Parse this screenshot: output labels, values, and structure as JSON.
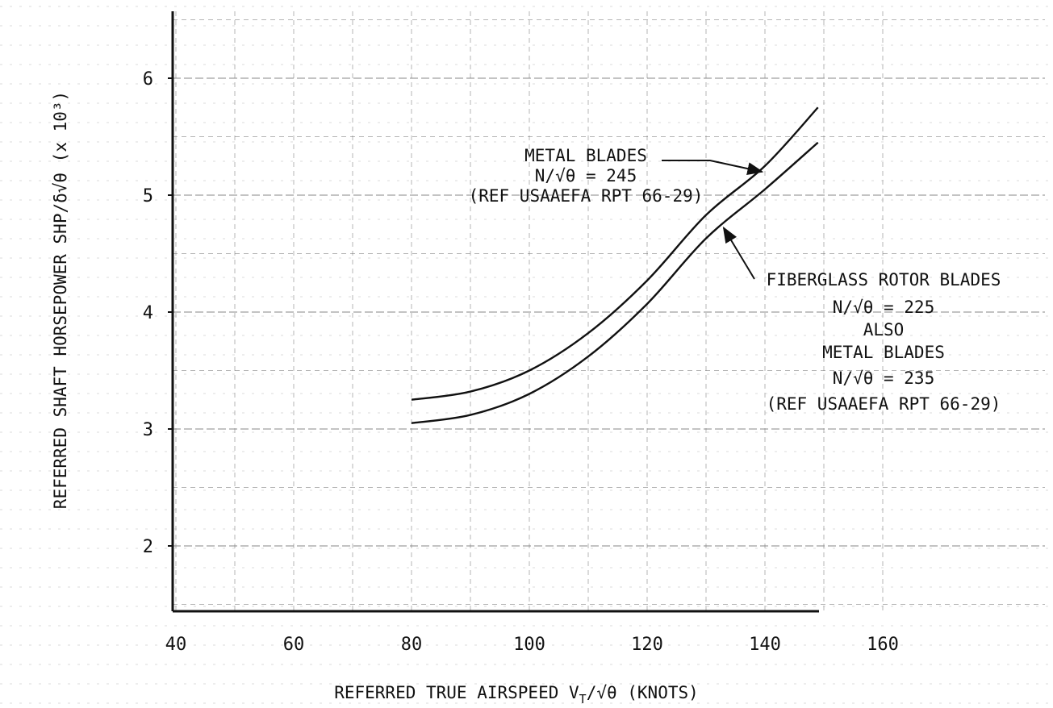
{
  "chart_data": {
    "type": "line",
    "xlabel": "REFERRED TRUE AIRSPEED V",
    "xlabel_sub": "T",
    "xlabel_tail": "/√θ (KNOTS)",
    "ylabel": "REFERRED SHAFT HORSEPOWER  SHP/δ√θ (x 10³)",
    "xlim": [
      40,
      160
    ],
    "ylim": [
      1.5,
      6.5
    ],
    "x_ticks": [
      "40",
      "60",
      "80",
      "100",
      "120",
      "140",
      "160"
    ],
    "y_ticks": [
      "2",
      "3",
      "4",
      "5",
      "6"
    ],
    "grid": true,
    "series": [
      {
        "x": [
          80,
          90,
          100,
          110,
          120,
          130,
          140,
          149
        ],
        "y": [
          3.25,
          3.32,
          3.5,
          3.82,
          4.27,
          4.83,
          5.25,
          5.75
        ]
      },
      {
        "x": [
          80,
          90,
          100,
          110,
          120,
          130,
          140,
          149
        ],
        "y": [
          3.05,
          3.12,
          3.3,
          3.62,
          4.07,
          4.63,
          5.05,
          5.45
        ]
      }
    ],
    "annotations": [
      {
        "target_series": 0,
        "lines": [
          "METAL BLADES",
          "N/√θ = 245",
          "(REF USAAEFA RPT 66-29)"
        ]
      },
      {
        "target_series": 1,
        "lines": [
          "FIBERGLASS ROTOR BLADES",
          "N/√θ = 225",
          "ALSO",
          "METAL BLADES",
          "N/√θ = 235",
          "(REF USAAEFA RPT 66-29)"
        ]
      }
    ]
  }
}
